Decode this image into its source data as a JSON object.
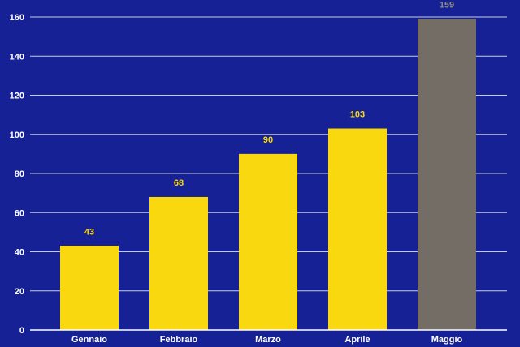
{
  "colors": {
    "background": "#152194",
    "gridline": "#c8cbe6",
    "axis": "#ffffff",
    "bar": "#f9d80f",
    "highlight_bar": "#736d66",
    "value_label": "#f9d80f",
    "highlight_value_label": "#8c8a8a"
  },
  "chart_data": {
    "type": "bar",
    "categories": [
      "Gennaio",
      "Febbraio",
      "Marzo",
      "Aprile",
      "Maggio"
    ],
    "values": [
      43,
      68,
      90,
      103,
      159
    ],
    "highlight_index": 4,
    "value_labels": [
      "43",
      "68",
      "90",
      "103",
      "159"
    ],
    "ylim": [
      0,
      160
    ],
    "yticks": [
      0,
      20,
      40,
      60,
      80,
      100,
      120,
      140,
      160
    ],
    "ytick_labels": [
      "0",
      "20",
      "40",
      "60",
      "80",
      "100",
      "120",
      "140",
      "160"
    ],
    "grid": true,
    "legend": "none",
    "title": "",
    "xlabel": "",
    "ylabel": ""
  }
}
